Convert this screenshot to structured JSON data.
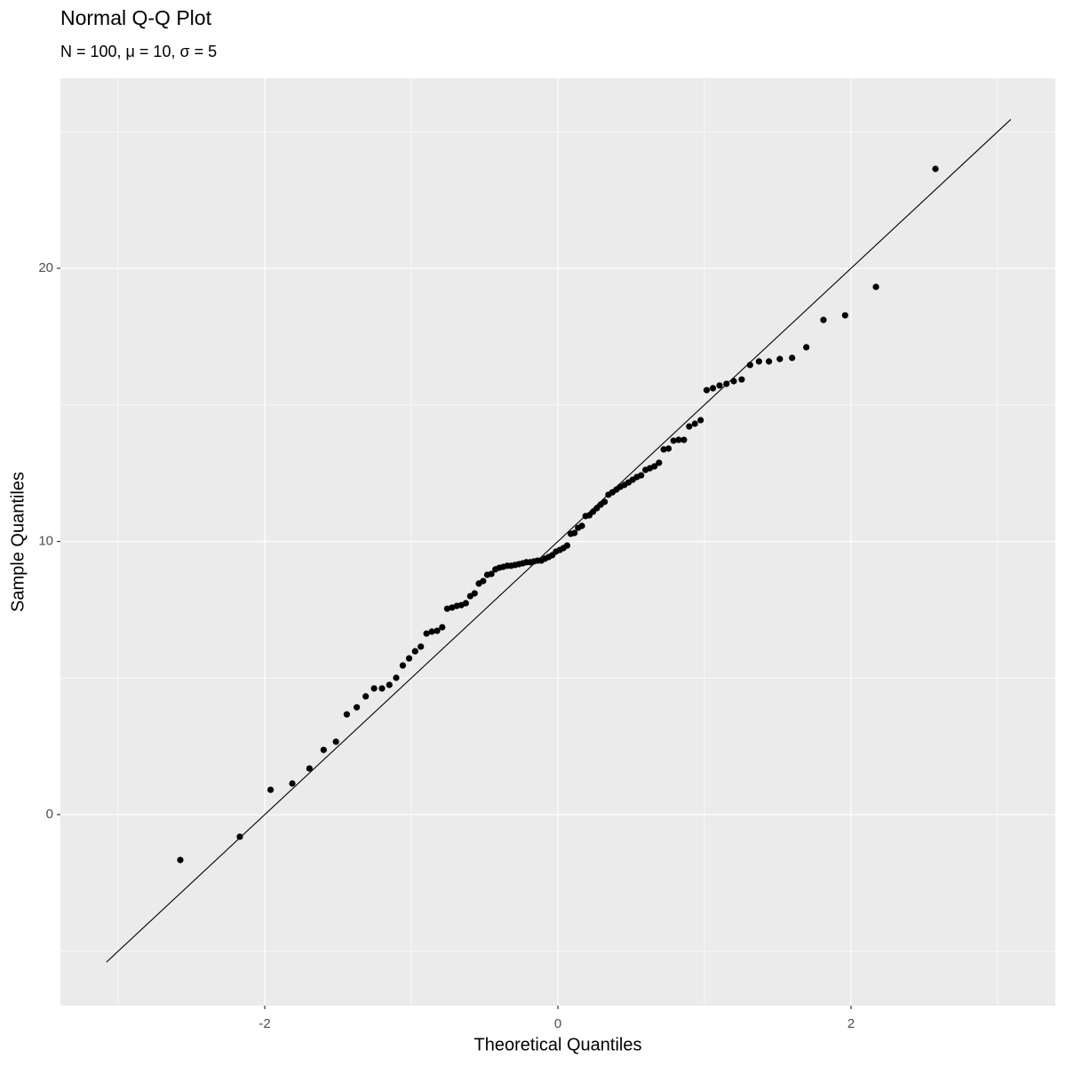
{
  "chart_data": {
    "type": "scatter",
    "title": "Normal Q-Q Plot",
    "subtitle": "N = 100, μ = 10, σ = 5",
    "x_label": "Theoretical Quantiles",
    "y_label": "Sample Quantiles",
    "xlim": [
      -3.394,
      3.394
    ],
    "ylim": [
      -6.99,
      26.96
    ],
    "xticks": [
      -2,
      0,
      2
    ],
    "yticks": [
      0,
      10,
      20
    ],
    "minor_xticks": [
      -3,
      -1,
      1,
      3
    ],
    "minor_yticks": [
      -5,
      5,
      15,
      25
    ],
    "grid": true,
    "color": "#000000",
    "x": [
      -2.576,
      -2.17,
      -1.96,
      -1.812,
      -1.695,
      -1.598,
      -1.514,
      -1.44,
      -1.372,
      -1.311,
      -1.254,
      -1.2,
      -1.15,
      -1.103,
      -1.058,
      -1.015,
      -0.974,
      -0.935,
      -0.896,
      -0.86,
      -0.824,
      -0.789,
      -0.755,
      -0.722,
      -0.69,
      -0.659,
      -0.628,
      -0.598,
      -0.568,
      -0.539,
      -0.51,
      -0.482,
      -0.454,
      -0.426,
      -0.399,
      -0.372,
      -0.345,
      -0.319,
      -0.292,
      -0.266,
      -0.24,
      -0.215,
      -0.189,
      -0.164,
      -0.138,
      -0.113,
      -0.088,
      -0.063,
      -0.038,
      -0.013,
      0.013,
      0.038,
      0.063,
      0.088,
      0.113,
      0.138,
      0.164,
      0.189,
      0.215,
      0.24,
      0.266,
      0.292,
      0.319,
      0.345,
      0.372,
      0.399,
      0.426,
      0.454,
      0.482,
      0.51,
      0.539,
      0.568,
      0.598,
      0.628,
      0.659,
      0.69,
      0.722,
      0.755,
      0.789,
      0.824,
      0.86,
      0.896,
      0.935,
      0.974,
      1.015,
      1.058,
      1.103,
      1.15,
      1.2,
      1.254,
      1.311,
      1.372,
      1.44,
      1.514,
      1.598,
      1.695,
      1.812,
      1.96,
      2.17,
      2.576
    ],
    "y": [
      -1.66,
      -0.81,
      0.91,
      1.14,
      1.69,
      2.37,
      2.67,
      3.67,
      3.93,
      4.33,
      4.62,
      4.62,
      4.75,
      5.01,
      5.46,
      5.72,
      5.98,
      6.15,
      6.63,
      6.7,
      6.73,
      6.86,
      7.54,
      7.58,
      7.64,
      7.67,
      7.74,
      8.0,
      8.1,
      8.46,
      8.55,
      8.78,
      8.81,
      8.98,
      9.04,
      9.07,
      9.11,
      9.11,
      9.14,
      9.17,
      9.2,
      9.24,
      9.24,
      9.27,
      9.3,
      9.3,
      9.37,
      9.43,
      9.5,
      9.63,
      9.69,
      9.76,
      9.85,
      10.28,
      10.31,
      10.5,
      10.57,
      10.93,
      10.96,
      11.09,
      11.22,
      11.35,
      11.45,
      11.71,
      11.8,
      11.9,
      12.0,
      12.07,
      12.16,
      12.26,
      12.36,
      12.42,
      12.62,
      12.68,
      12.75,
      12.88,
      13.37,
      13.4,
      13.69,
      13.72,
      13.72,
      14.21,
      14.31,
      14.44,
      15.54,
      15.61,
      15.71,
      15.77,
      15.87,
      15.93,
      16.46,
      16.59,
      16.59,
      16.68,
      16.72,
      17.11,
      18.11,
      18.28,
      19.32,
      23.64
    ],
    "reference_line": {
      "x": [
        -3.08,
        3.09
      ],
      "y": [
        -5.4,
        25.45
      ]
    }
  }
}
